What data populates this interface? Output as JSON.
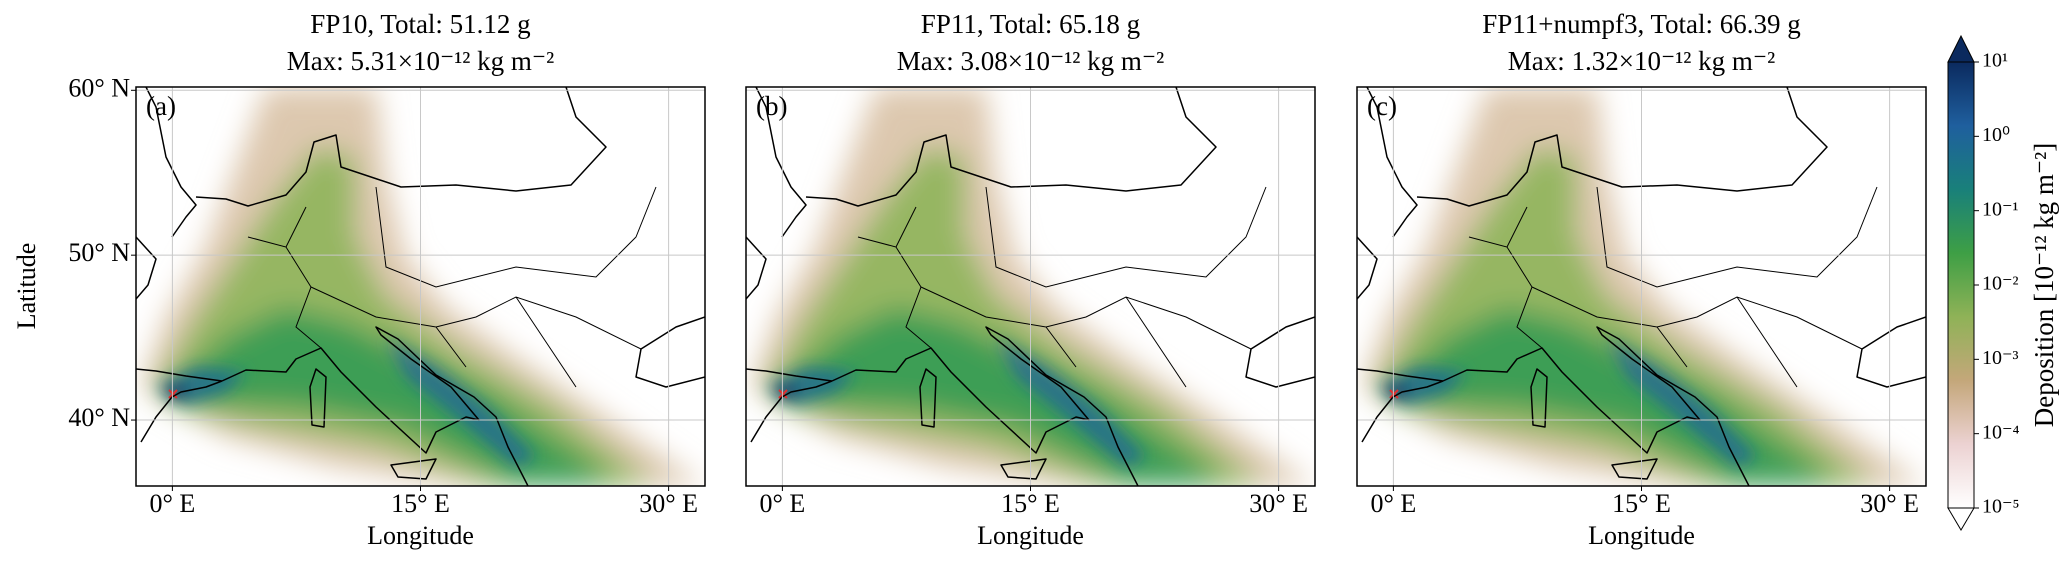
{
  "panels": [
    {
      "label": "(a)",
      "title": "FP10, Total: 51.12 g",
      "subtitle": "Max: 5.31×10⁻¹² kg m⁻²"
    },
    {
      "label": "(b)",
      "title": "FP11, Total: 65.18 g",
      "subtitle": "Max: 3.08×10⁻¹² kg m⁻²"
    },
    {
      "label": "(c)",
      "title": "FP11+numpf3, Total: 66.39 g",
      "subtitle": "Max: 1.32×10⁻¹² kg m⁻²"
    }
  ],
  "axes": {
    "xlabel": "Longitude",
    "ylabel": "Latitude",
    "xlim": [
      -2.2,
      32.2
    ],
    "ylim": [
      36,
      60.2
    ],
    "xticks": [
      {
        "value": 0,
        "label": "0° E"
      },
      {
        "value": 15,
        "label": "15° E"
      },
      {
        "value": 30,
        "label": "30° E"
      }
    ],
    "yticks": [
      {
        "value": 40,
        "label": "40° N"
      },
      {
        "value": 50,
        "label": "50° N"
      },
      {
        "value": 60,
        "label": "60° N"
      }
    ],
    "grid": true
  },
  "colorbar": {
    "label": "Deposition [10⁻¹² kg m⁻²]",
    "scale": "log",
    "clim": [
      1e-05,
      10
    ],
    "ticks": [
      {
        "value": 10,
        "label": "10¹"
      },
      {
        "value": 1,
        "label": "10⁰"
      },
      {
        "value": 0.1,
        "label": "10⁻¹"
      },
      {
        "value": 0.01,
        "label": "10⁻²"
      },
      {
        "value": 0.001,
        "label": "10⁻³"
      },
      {
        "value": 0.0001,
        "label": "10⁻⁴"
      },
      {
        "value": 1e-05,
        "label": "10⁻⁵"
      }
    ],
    "colors": [
      "#ffffff",
      "#ecd2d2",
      "#c4a77a",
      "#8fb257",
      "#3e9f45",
      "#19807a",
      "#1f5f9e",
      "#0b2a5e"
    ]
  }
}
